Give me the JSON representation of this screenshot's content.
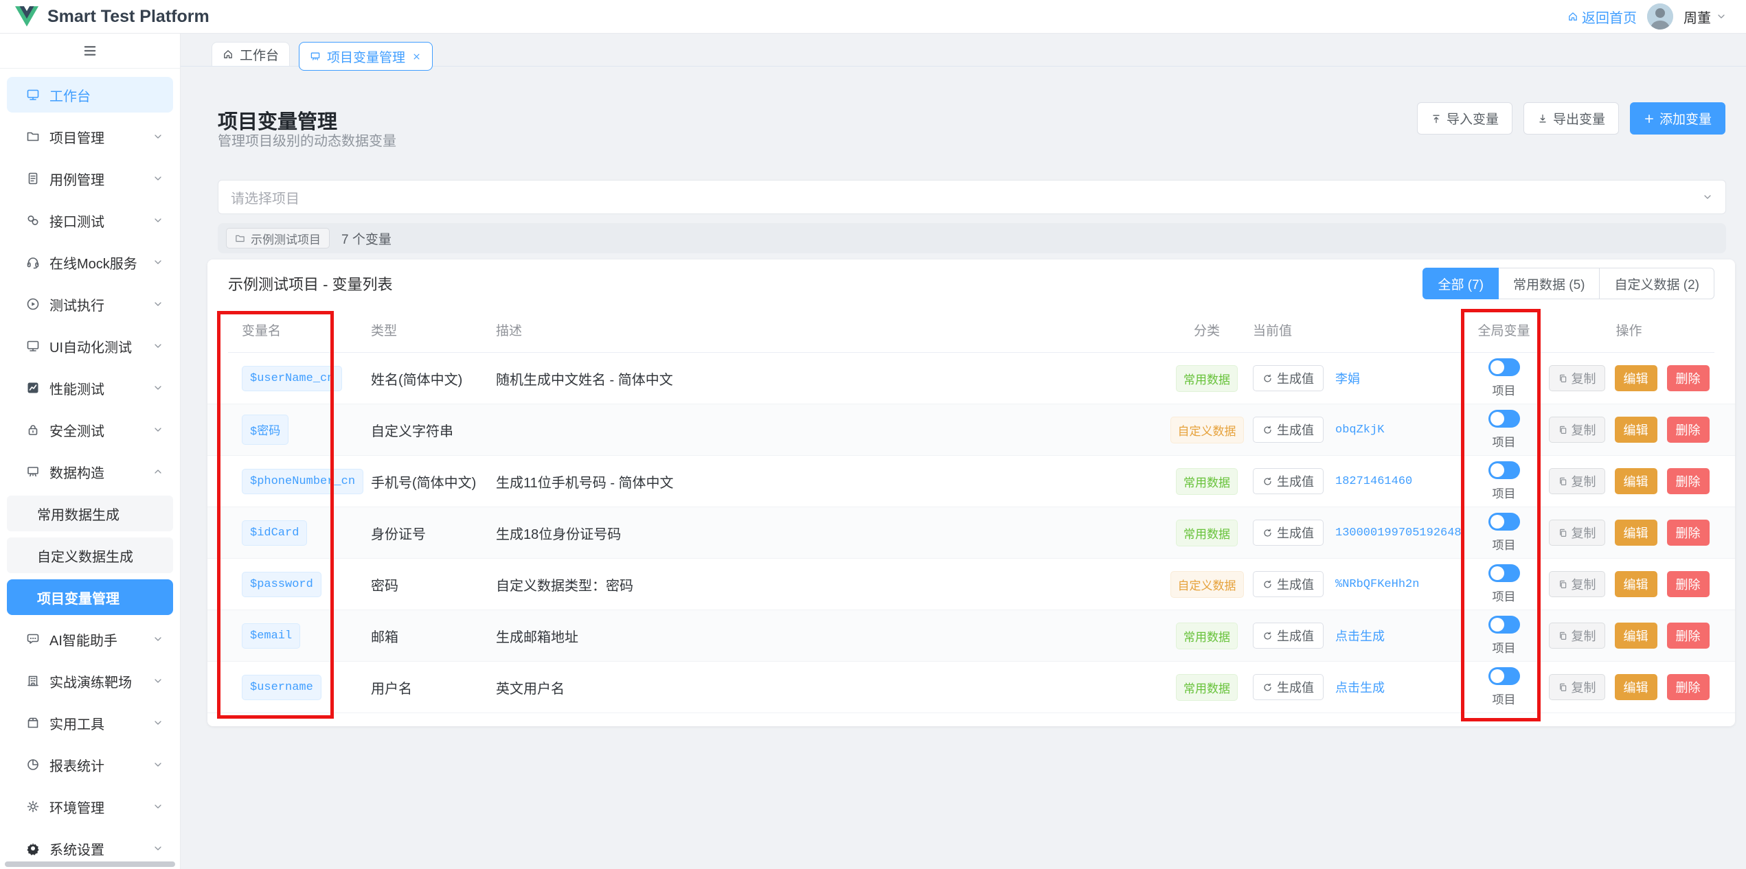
{
  "header": {
    "brand": "Smart Test Platform",
    "back_home": "返回首页",
    "user_name": "周董"
  },
  "tabs": [
    {
      "key": "workbench",
      "label": "工作台",
      "icon": "home",
      "active": false,
      "closable": false
    },
    {
      "key": "project-variable-mgmt",
      "label": "项目变量管理",
      "icon": "board",
      "active": true,
      "closable": true
    }
  ],
  "sidebar": {
    "items": [
      {
        "key": "workbench",
        "label": "工作台",
        "icon": "monitor",
        "type": "item",
        "state": "active",
        "chevron": null
      },
      {
        "key": "project-mgmt",
        "label": "项目管理",
        "icon": "folder",
        "type": "item",
        "chevron": "down"
      },
      {
        "key": "case-mgmt",
        "label": "用例管理",
        "icon": "document",
        "type": "item",
        "chevron": "down"
      },
      {
        "key": "api-test",
        "label": "接口测试",
        "icon": "link",
        "type": "item",
        "chevron": "down"
      },
      {
        "key": "mock-service",
        "label": "在线Mock服务",
        "icon": "headset",
        "type": "item",
        "chevron": "down"
      },
      {
        "key": "test-execution",
        "label": "测试执行",
        "icon": "play",
        "type": "item",
        "chevron": "down"
      },
      {
        "key": "ui-automation",
        "label": "UI自动化测试",
        "icon": "monitor",
        "type": "item",
        "chevron": "down"
      },
      {
        "key": "performance-test",
        "label": "性能测试",
        "icon": "chart",
        "type": "item",
        "chevron": "down"
      },
      {
        "key": "security-test",
        "label": "安全测试",
        "icon": "lock",
        "type": "item",
        "chevron": "down"
      },
      {
        "key": "data-construct",
        "label": "数据构造",
        "icon": "board",
        "type": "item",
        "chevron": "up"
      },
      {
        "key": "common-data-gen",
        "label": "常用数据生成",
        "type": "sub"
      },
      {
        "key": "custom-data-gen",
        "label": "自定义数据生成",
        "type": "sub"
      },
      {
        "key": "project-variable-mgmt",
        "label": "项目变量管理",
        "type": "sub",
        "state": "active"
      },
      {
        "key": "ai-assistant",
        "label": "AI智能助手",
        "icon": "chat",
        "type": "item",
        "chevron": "down"
      },
      {
        "key": "practice-range",
        "label": "实战演练靶场",
        "icon": "building",
        "type": "item",
        "chevron": "down"
      },
      {
        "key": "utilities",
        "label": "实用工具",
        "icon": "box",
        "type": "item",
        "chevron": "down"
      },
      {
        "key": "report-stats",
        "label": "报表统计",
        "icon": "pie",
        "type": "item",
        "chevron": "down"
      },
      {
        "key": "env-mgmt",
        "label": "环境管理",
        "icon": "gear",
        "type": "item",
        "chevron": "down"
      },
      {
        "key": "system-settings",
        "label": "系统设置",
        "icon": "gear-filled",
        "type": "item",
        "chevron": "down"
      }
    ]
  },
  "page": {
    "title": "项目变量管理",
    "subtitle": "管理项目级别的动态数据变量",
    "actions": {
      "import": "导入变量",
      "export": "导出变量",
      "add": "添加变量"
    }
  },
  "project_select": {
    "placeholder": "请选择项目"
  },
  "project_bar": {
    "tag": "示例测试项目",
    "count_text": "7 个变量"
  },
  "card": {
    "title": "示例测试项目 - 变量列表",
    "filters": [
      {
        "key": "all",
        "label": "全部 (7)",
        "active": true
      },
      {
        "key": "common",
        "label": "常用数据 (5)",
        "active": false
      },
      {
        "key": "custom",
        "label": "自定义数据 (2)",
        "active": false
      }
    ],
    "columns": [
      "变量名",
      "类型",
      "描述",
      "分类",
      "当前值",
      "全局变量",
      "操作"
    ],
    "generate_label": "生成值",
    "scope_label": "项目",
    "row_actions": {
      "copy": "复制",
      "edit": "编辑",
      "delete": "删除"
    },
    "rows": [
      {
        "name": "$userName_cn",
        "type": "姓名(简体中文)",
        "desc": "随机生成中文姓名 - 简体中文",
        "category": "常用数据",
        "category_kind": "common",
        "value": "李娟",
        "value_kind": "text"
      },
      {
        "name": "$密码",
        "type": "自定义字符串",
        "desc": "",
        "category": "自定义数据",
        "category_kind": "custom",
        "value": "obqZkjK",
        "value_kind": "mono"
      },
      {
        "name": "$phoneNumber_cn",
        "type": "手机号(简体中文)",
        "desc": "生成11位手机号码 - 简体中文",
        "category": "常用数据",
        "category_kind": "common",
        "value": "18271461460",
        "value_kind": "mono"
      },
      {
        "name": "$idCard",
        "type": "身份证号",
        "desc": "生成18位身份证号码",
        "category": "常用数据",
        "category_kind": "common",
        "value": "130000199705192648",
        "value_kind": "mono"
      },
      {
        "name": "$password",
        "type": "密码",
        "desc": "自定义数据类型：密码",
        "category": "自定义数据",
        "category_kind": "custom",
        "value": "%NRbQFKeHh2n",
        "value_kind": "mono"
      },
      {
        "name": "$email",
        "type": "邮箱",
        "desc": "生成邮箱地址",
        "category": "常用数据",
        "category_kind": "common",
        "value": "点击生成",
        "value_kind": "link"
      },
      {
        "name": "$username",
        "type": "用户名",
        "desc": "英文用户名",
        "category": "常用数据",
        "category_kind": "common",
        "value": "点击生成",
        "value_kind": "link"
      }
    ]
  },
  "colors": {
    "primary": "#409eff",
    "success": "#67c23a",
    "warning": "#e6a23c",
    "danger": "#f56c6c",
    "annotation": "#ec1414"
  }
}
